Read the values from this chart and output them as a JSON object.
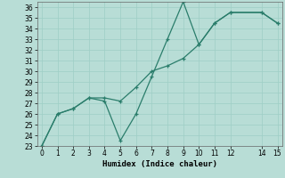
{
  "xlabel": "Humidex (Indice chaleur)",
  "x": [
    0,
    1,
    2,
    3,
    4,
    5,
    6,
    7,
    8,
    9,
    10,
    11,
    12,
    14,
    15
  ],
  "line1_y": [
    23,
    26,
    26.5,
    27.5,
    27.2,
    23.5,
    26,
    29.5,
    33,
    36.5,
    32.5,
    34.5,
    35.5,
    35.5,
    34.5
  ],
  "line2_y": [
    23,
    26,
    26.5,
    27.5,
    27.5,
    27.2,
    28.5,
    30,
    30.5,
    31.2,
    32.5,
    34.5,
    35.5,
    35.5,
    34.5
  ],
  "ylim": [
    23,
    36.5
  ],
  "xlim": [
    -0.3,
    15.3
  ],
  "yticks": [
    23,
    24,
    25,
    26,
    27,
    28,
    29,
    30,
    31,
    32,
    33,
    34,
    35,
    36
  ],
  "xticks": [
    0,
    1,
    2,
    3,
    4,
    5,
    6,
    7,
    8,
    9,
    10,
    11,
    12,
    14,
    15
  ],
  "line_color": "#2a7d6b",
  "bg_color": "#b8ddd6",
  "grid_color": "#9ecec5",
  "label_fontsize": 6.5,
  "tick_fontsize": 5.5
}
